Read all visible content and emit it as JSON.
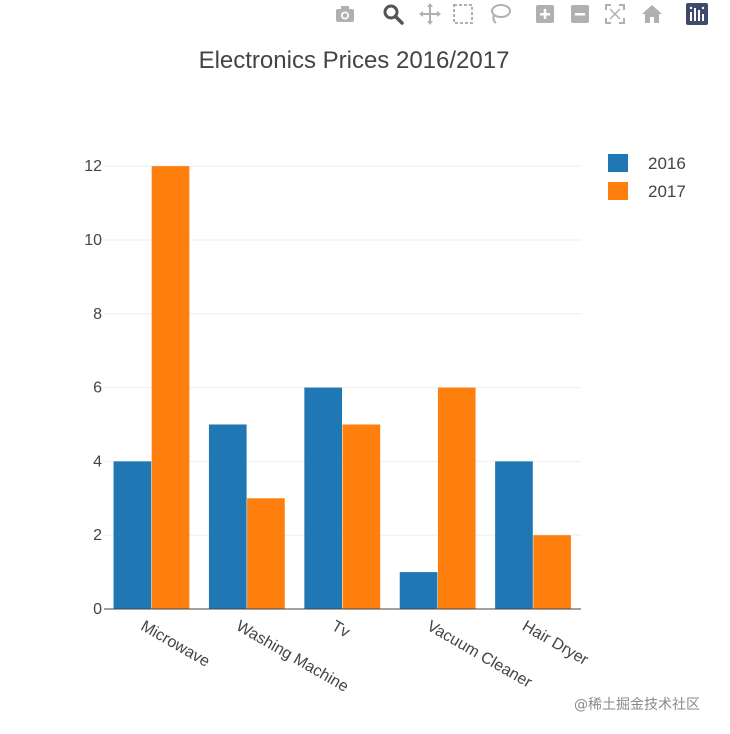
{
  "modebar": {
    "buttons": [
      {
        "name": "camera-icon",
        "title": "Download plot as a png"
      },
      {
        "name": "zoom-icon",
        "title": "Zoom"
      },
      {
        "name": "pan-icon",
        "title": "Pan"
      },
      {
        "name": "box-select-icon",
        "title": "Box Select"
      },
      {
        "name": "lasso-select-icon",
        "title": "Lasso Select"
      },
      {
        "name": "zoom-in-icon",
        "title": "Zoom in"
      },
      {
        "name": "zoom-out-icon",
        "title": "Zoom out"
      },
      {
        "name": "autoscale-icon",
        "title": "Autoscale"
      },
      {
        "name": "reset-axes-icon",
        "title": "Reset axes"
      },
      {
        "name": "plotly-logo-icon",
        "title": "Produced with Plotly"
      }
    ],
    "icon_color": "#b0b0b0",
    "active_icon_color": "#555555"
  },
  "chart_data": {
    "type": "bar",
    "title": "Electronics Prices 2016/2017",
    "xlabel": "",
    "ylabel": "",
    "categories": [
      "Microwave",
      "Washing Machine",
      "Tv",
      "Vacuum Cleaner",
      "Hair Dryer"
    ],
    "series": [
      {
        "name": "2016",
        "values": [
          4,
          5,
          6,
          1,
          4
        ],
        "color": "#1f77b4"
      },
      {
        "name": "2017",
        "values": [
          12,
          3,
          5,
          6,
          2
        ],
        "color": "#ff7f0e"
      }
    ],
    "ylim": [
      0,
      12.6
    ],
    "yticks": [
      0,
      2,
      4,
      6,
      8,
      10,
      12
    ],
    "grid": true,
    "legend_position": "top-right",
    "barmode": "group"
  },
  "watermark": "@稀土掘金技术社区"
}
